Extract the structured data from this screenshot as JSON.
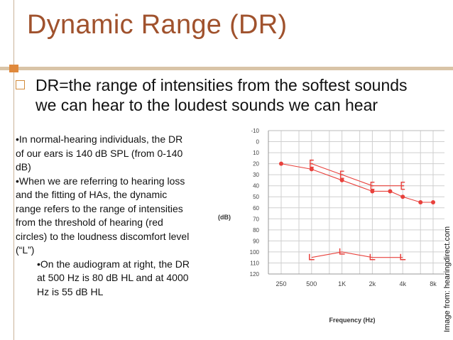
{
  "slide": {
    "title": "Dynamic Range (DR)",
    "bullet_main": "DR=the range of intensities from the softest sounds we can hear to the loudest sounds we can hear",
    "side_text": {
      "p1": "•In normal-hearing individuals, the DR of our ears is 140 dB SPL (from 0-140 dB)",
      "p2": "•When we are referring to hearing loss and the fitting of HAs, the dynamic range refers to the range of intensities from the threshold of hearing (red circles) to the loudness discomfort level (“L”)",
      "p3": "•On the audiogram at right, the DR at 500 Hz is 80 dB HL and at 4000 Hz is 55 dB HL"
    },
    "image_credit": "Image from: hearingdirect.com",
    "colors": {
      "title": "#a0522d",
      "accent": "#e0893c",
      "divider": "#d9c4a7",
      "plot_red": "#e8413c"
    }
  },
  "audiogram": {
    "xlabel": "Frequency (Hz)",
    "ylabel": "(dB)",
    "x_ticks": [
      "250",
      "500",
      "1K",
      "2k",
      "4k",
      "8k"
    ],
    "y_ticks": [
      "-10",
      "0",
      "10",
      "20",
      "30",
      "40",
      "50",
      "60",
      "70",
      "80",
      "90",
      "100",
      "110",
      "120"
    ]
  },
  "chart_data": {
    "type": "line",
    "xlabel": "Frequency (Hz)",
    "ylabel": "(dB)",
    "ylim": [
      -10,
      120
    ],
    "y_inverted": true,
    "categories": [
      "250",
      "500",
      "1K",
      "2k",
      "4k",
      "8k"
    ],
    "grid": true,
    "series": [
      {
        "marker": "circle",
        "x": [
          250,
          500,
          1000,
          2000,
          3000,
          4000,
          6000,
          8000
        ],
        "values": [
          20,
          25,
          35,
          45,
          45,
          50,
          55,
          55
        ]
      },
      {
        "marker": "bracket-left",
        "x": [
          500,
          1000,
          2000,
          4000
        ],
        "values": [
          20,
          30,
          40,
          40
        ]
      },
      {
        "marker": "L",
        "x": [
          500,
          1000,
          2000,
          4000
        ],
        "values": [
          105,
          100,
          105,
          105
        ]
      }
    ]
  }
}
